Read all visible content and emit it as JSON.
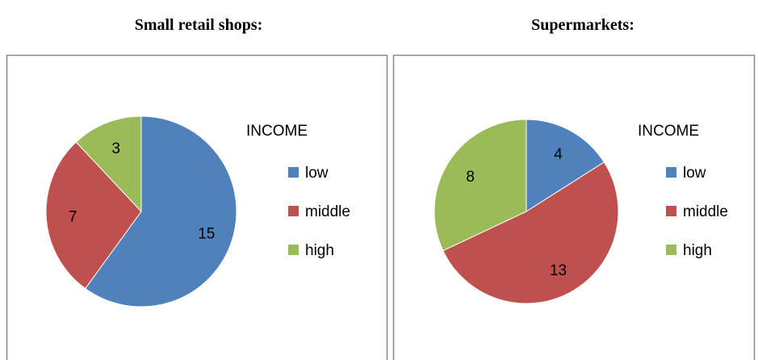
{
  "chart_data": [
    {
      "type": "pie",
      "title": "Small retail shops:",
      "legend_title": "INCOME",
      "categories": [
        "low",
        "middle",
        "high"
      ],
      "values": [
        15,
        7,
        3
      ],
      "colors": [
        "#4f81bd",
        "#c0504d",
        "#9bbb59"
      ],
      "legend": "right"
    },
    {
      "type": "pie",
      "title": "Supermarkets:",
      "legend_title": "INCOME",
      "categories": [
        "low",
        "middle",
        "high"
      ],
      "values": [
        4,
        13,
        8
      ],
      "colors": [
        "#4f81bd",
        "#c0504d",
        "#9bbb59"
      ],
      "legend": "right"
    }
  ]
}
